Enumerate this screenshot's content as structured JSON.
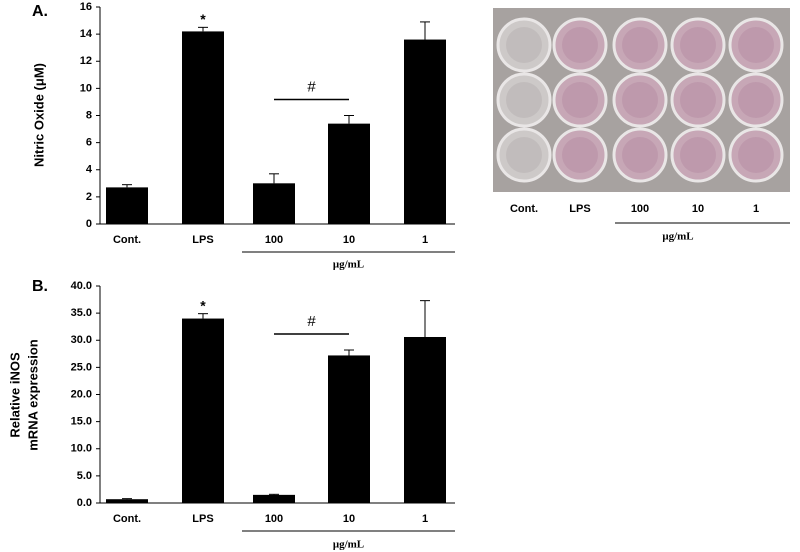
{
  "chart_data": [
    {
      "type": "bar",
      "panel_label": "A.",
      "ylabel": [
        "Nitric Oxide  (μM)"
      ],
      "categories": [
        "Cont.",
        "LPS",
        "100",
        "10",
        "1"
      ],
      "values": [
        2.7,
        14.2,
        3.0,
        7.4,
        13.6
      ],
      "errors": [
        0.2,
        0.3,
        0.7,
        0.6,
        1.3
      ],
      "color": "#000000",
      "ylim": [
        0,
        16
      ],
      "yticks": [
        0,
        2,
        4,
        6,
        8,
        10,
        12,
        14,
        16
      ],
      "annotations": [
        {
          "text": "*",
          "categories": [
            "LPS"
          ]
        },
        {
          "text": "#",
          "categories": [
            "100",
            "10"
          ]
        }
      ],
      "group": {
        "label": "μg/mL",
        "categories": [
          "100",
          "10",
          "1"
        ]
      }
    },
    {
      "type": "bar",
      "panel_label": "B.",
      "ylabel": [
        "Relative  iNOS",
        "mRNA expression"
      ],
      "categories": [
        "Cont.",
        "LPS",
        "100",
        "10",
        "1"
      ],
      "values": [
        0.7,
        34.0,
        1.5,
        27.2,
        30.6
      ],
      "errors": [
        0.1,
        0.9,
        0.1,
        1.0,
        6.7
      ],
      "color": "#000000",
      "ylim": [
        0,
        40
      ],
      "yticks": [
        {
          "value": 0,
          "label": "0.0"
        },
        {
          "value": 5,
          "label": "5.0"
        },
        {
          "value": 10,
          "label": "10.0"
        },
        {
          "value": 15,
          "label": "15.0"
        },
        {
          "value": 20,
          "label": "20.0"
        },
        {
          "value": 25,
          "label": "25.0"
        },
        {
          "value": 30,
          "label": "30.0"
        },
        {
          "value": 35,
          "label": "35.0"
        },
        {
          "value": 40,
          "label": "40.0"
        }
      ],
      "annotations": [
        {
          "text": "*",
          "categories": [
            "LPS"
          ]
        },
        {
          "text": "#",
          "categories": [
            "100",
            "10"
          ]
        }
      ],
      "group": {
        "label": "μg/mL",
        "categories": [
          "100",
          "10",
          "1"
        ]
      }
    }
  ],
  "plate": {
    "labels": [
      "Cont.",
      "LPS",
      "100",
      "10",
      "1"
    ],
    "unit": "μg/mL"
  }
}
